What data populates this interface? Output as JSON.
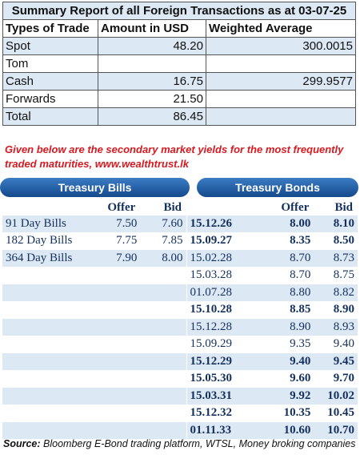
{
  "summary": {
    "title": "Summary Report of all Foreign Transactions as at 03-07-25",
    "headers": [
      "Types of Trade",
      "Amount in USD",
      "Weighted Average"
    ],
    "rows": [
      [
        "Spot",
        "48.20",
        "300.0015"
      ],
      [
        "Tom",
        null,
        null
      ],
      [
        "Cash",
        "16.75",
        "299.9577"
      ],
      [
        "Forwards",
        "21.50",
        null
      ],
      [
        "Total",
        "86.45",
        null
      ]
    ]
  },
  "note": [
    "Given below are the secondary market yields for the most frequently",
    "traded maturities, www.wealthtrust.lk"
  ],
  "bills": {
    "title": "Treasury Bills",
    "headers": [
      "Offer",
      "Bid"
    ],
    "rows": [
      [
        "91 Day Bills",
        "7.50",
        "7.60"
      ],
      [
        "182 Day Bills",
        "7.75",
        "7.85"
      ],
      [
        "364 Day Bills",
        "7.90",
        "8.00"
      ]
    ]
  },
  "bonds": {
    "title": "Treasury Bonds",
    "headers": [
      "Offer",
      "Bid"
    ],
    "rows": [
      {
        "maturity": "15.12.26",
        "offer": "8.00",
        "bid": "8.10",
        "bold": true
      },
      {
        "maturity": "15.09.27",
        "offer": "8.35",
        "bid": "8.50",
        "bold": true
      },
      {
        "maturity": "15.02.28",
        "offer": "8.70",
        "bid": "8.73",
        "bold": false
      },
      {
        "maturity": "15.03.28",
        "offer": "8.70",
        "bid": "8.75",
        "bold": false
      },
      {
        "maturity": "01.07.28",
        "offer": "8.80",
        "bid": "8.82",
        "bold": false
      },
      {
        "maturity": "15.10.28",
        "offer": "8.85",
        "bid": "8.90",
        "bold": true
      },
      {
        "maturity": "15.12.28",
        "offer": "8.90",
        "bid": "8.93",
        "bold": false
      },
      {
        "maturity": "15.09.29",
        "offer": "9.35",
        "bid": "9.40",
        "bold": false
      },
      {
        "maturity": "15.12.29",
        "offer": "9.40",
        "bid": "9.45",
        "bold": true
      },
      {
        "maturity": "15.05.30",
        "offer": "9.60",
        "bid": "9.70",
        "bold": true
      },
      {
        "maturity": "15.03.31",
        "offer": "9.92",
        "bid": "10.02",
        "bold": true
      },
      {
        "maturity": "15.12.32",
        "offer": "10.35",
        "bid": "10.45",
        "bold": true
      },
      {
        "maturity": "01.11.33",
        "offer": "10.60",
        "bid": "10.70",
        "bold": true
      }
    ]
  },
  "source": {
    "label": "Source:",
    "text": "Bloomberg E-Bond trading platform, WTSL, Money broking companies"
  }
}
